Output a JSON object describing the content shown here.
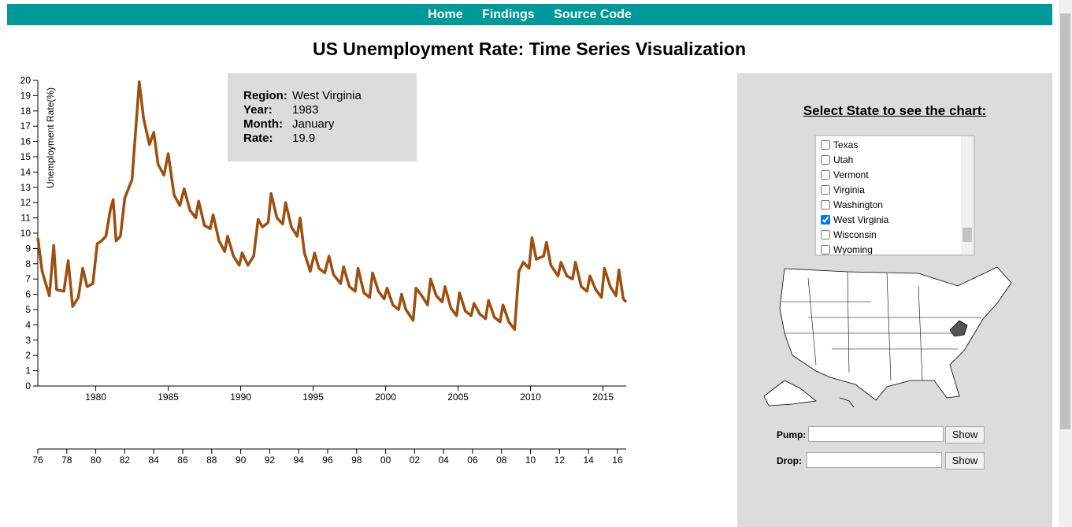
{
  "nav": [
    "Home",
    "Findings",
    "Source Code"
  ],
  "chart_data": [
    {
      "type": "line",
      "title": "US Unemployment Rate: Time Series Visualization",
      "y_label": "Unemployment Rate(%)",
      "color": "#9c4f0f",
      "x": [
        1976.0,
        1976.3,
        1976.8,
        1977.1,
        1977.3,
        1977.8,
        1978.1,
        1978.4,
        1978.8,
        1979.1,
        1979.4,
        1979.8,
        1980.1,
        1980.4,
        1980.7,
        1981.0,
        1981.2,
        1981.4,
        1981.7,
        1982.0,
        1982.5,
        1983.0,
        1983.3,
        1983.7,
        1984.0,
        1984.3,
        1984.7,
        1985.0,
        1985.4,
        1985.8,
        1986.1,
        1986.5,
        1986.9,
        1987.1,
        1987.5,
        1987.9,
        1988.1,
        1988.5,
        1988.9,
        1989.1,
        1989.5,
        1989.9,
        1990.1,
        1990.5,
        1990.9,
        1991.2,
        1991.5,
        1991.9,
        1992.1,
        1992.5,
        1992.9,
        1993.1,
        1993.5,
        1993.9,
        1994.1,
        1994.4,
        1994.8,
        1995.1,
        1995.4,
        1995.8,
        1996.1,
        1996.4,
        1996.9,
        1997.1,
        1997.5,
        1997.9,
        1998.1,
        1998.5,
        1998.9,
        1999.1,
        1999.5,
        1999.9,
        2000.1,
        2000.5,
        2000.9,
        2001.1,
        2001.4,
        2001.9,
        2002.1,
        2002.5,
        2002.9,
        2003.1,
        2003.5,
        2003.9,
        2004.1,
        2004.5,
        2004.9,
        2005.1,
        2005.5,
        2005.9,
        2006.1,
        2006.5,
        2006.9,
        2007.1,
        2007.5,
        2007.9,
        2008.1,
        2008.5,
        2008.9,
        2009.2,
        2009.5,
        2009.9,
        2010.1,
        2010.4,
        2010.9,
        2011.1,
        2011.4,
        2011.9,
        2012.1,
        2012.5,
        2012.9,
        2013.1,
        2013.5,
        2013.9,
        2014.1,
        2014.5,
        2014.9,
        2015.1,
        2015.5,
        2015.9,
        2016.1,
        2016.4,
        2016.6
      ],
      "values": [
        9.7,
        7.5,
        5.9,
        9.2,
        6.3,
        6.2,
        8.2,
        5.2,
        5.8,
        7.7,
        6.5,
        6.7,
        9.3,
        9.5,
        9.8,
        11.5,
        12.2,
        9.5,
        9.8,
        12.3,
        13.5,
        19.9,
        17.5,
        15.8,
        16.6,
        14.5,
        13.8,
        15.2,
        12.5,
        11.8,
        12.9,
        11.5,
        11.0,
        12.1,
        10.5,
        10.3,
        11.2,
        9.5,
        8.8,
        9.8,
        8.5,
        7.9,
        8.7,
        7.9,
        8.5,
        10.9,
        10.4,
        10.7,
        12.6,
        11.0,
        10.6,
        12.0,
        10.4,
        9.8,
        11.0,
        8.7,
        7.5,
        8.7,
        7.7,
        7.4,
        8.5,
        7.3,
        6.7,
        7.8,
        6.5,
        6.2,
        7.7,
        6.1,
        5.8,
        7.4,
        6.2,
        5.7,
        6.4,
        5.3,
        5.0,
        6.0,
        5.0,
        4.3,
        6.4,
        5.9,
        5.3,
        7.0,
        5.9,
        5.5,
        6.5,
        5.1,
        4.6,
        6.1,
        4.9,
        4.6,
        5.4,
        4.7,
        4.4,
        5.6,
        4.5,
        4.2,
        5.3,
        4.2,
        3.7,
        7.5,
        8.1,
        7.7,
        9.7,
        8.3,
        8.5,
        9.4,
        7.9,
        7.2,
        8.1,
        7.2,
        7.0,
        8.1,
        6.5,
        6.2,
        7.2,
        6.3,
        5.8,
        7.7,
        6.5,
        5.9,
        7.6,
        5.7,
        5.5
      ],
      "xlim": [
        1976,
        2016.6
      ],
      "xticks": [
        1980,
        1985,
        1990,
        1995,
        2000,
        2005,
        2010,
        2015
      ],
      "ylim": [
        0,
        20
      ],
      "yticks": [
        0,
        1,
        2,
        3,
        4,
        5,
        6,
        7,
        8,
        9,
        10,
        11,
        12,
        13,
        14,
        15,
        16,
        17,
        18,
        19,
        20
      ]
    },
    {
      "type": "axis",
      "xlim": [
        1976,
        2016.6
      ],
      "xticks": [
        {
          "value": 1976,
          "label": "76"
        },
        {
          "value": 1978,
          "label": "78"
        },
        {
          "value": 1980,
          "label": "80"
        },
        {
          "value": 1982,
          "label": "82"
        },
        {
          "value": 1984,
          "label": "84"
        },
        {
          "value": 1986,
          "label": "86"
        },
        {
          "value": 1988,
          "label": "88"
        },
        {
          "value": 1990,
          "label": "90"
        },
        {
          "value": 1992,
          "label": "92"
        },
        {
          "value": 1994,
          "label": "94"
        },
        {
          "value": 1996,
          "label": "96"
        },
        {
          "value": 1998,
          "label": "98"
        },
        {
          "value": 2000,
          "label": "00"
        },
        {
          "value": 2002,
          "label": "02"
        },
        {
          "value": 2004,
          "label": "04"
        },
        {
          "value": 2006,
          "label": "06"
        },
        {
          "value": 2008,
          "label": "08"
        },
        {
          "value": 2010,
          "label": "10"
        },
        {
          "value": 2012,
          "label": "12"
        },
        {
          "value": 2014,
          "label": "14"
        },
        {
          "value": 2016,
          "label": "16"
        }
      ]
    }
  ],
  "tooltip": {
    "labels": [
      "Region:",
      "Year:",
      "Month:",
      "Rate:"
    ],
    "values": [
      "West Virginia",
      "1983",
      "January",
      "19.9"
    ]
  },
  "panel": {
    "title": "Select State to see the chart:",
    "states": [
      "Texas",
      "Utah",
      "Vermont",
      "Virginia",
      "Washington",
      "West Virginia",
      "Wisconsin",
      "Wyoming"
    ],
    "checked": "West Virginia",
    "pump_label": "Pump:",
    "drop_label": "Drop:",
    "button": "Show"
  }
}
